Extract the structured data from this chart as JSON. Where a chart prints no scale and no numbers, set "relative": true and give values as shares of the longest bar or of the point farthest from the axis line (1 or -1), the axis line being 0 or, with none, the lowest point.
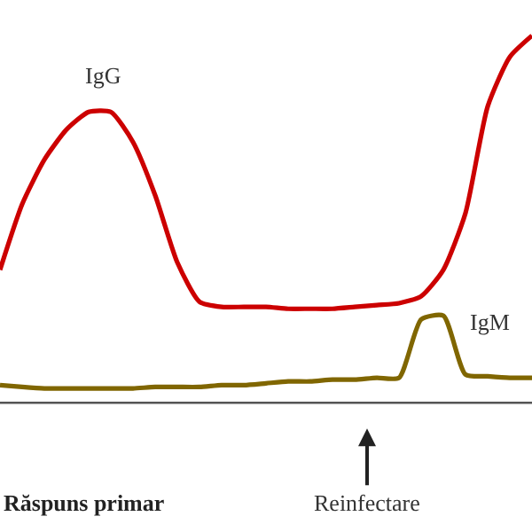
{
  "chart_data": {
    "type": "line",
    "relative": true,
    "legend": false,
    "marker": "none",
    "line_style": "solid",
    "categories": [
      null,
      null,
      null,
      null,
      null,
      null,
      null,
      null,
      null,
      null,
      null,
      null,
      null,
      null,
      null,
      null,
      null,
      null,
      null,
      null,
      null,
      null,
      null,
      null,
      null
    ],
    "series": [
      {
        "name": "IgG",
        "color": "#cc0000",
        "values": [
          0.362,
          0.541,
          0.662,
          0.744,
          0.792,
          0.792,
          0.71,
          0.565,
          0.382,
          0.275,
          0.261,
          0.261,
          0.261,
          0.256,
          0.256,
          0.256,
          0.261,
          0.266,
          0.271,
          0.29,
          0.362,
          0.517,
          0.807,
          0.942,
          1
        ]
      },
      {
        "name": "IgM",
        "color": "#806600",
        "values": [
          0.048,
          0.043,
          0.039,
          0.039,
          0.039,
          0.039,
          0.039,
          0.043,
          0.043,
          0.043,
          0.048,
          0.048,
          0.053,
          0.058,
          0.058,
          0.063,
          0.063,
          0.068,
          0.068,
          0.227,
          0.237,
          0.077,
          0.072,
          0.068,
          0.068
        ]
      }
    ],
    "annotations": [
      "Reinfectare",
      "Răspuns primar"
    ]
  }
}
